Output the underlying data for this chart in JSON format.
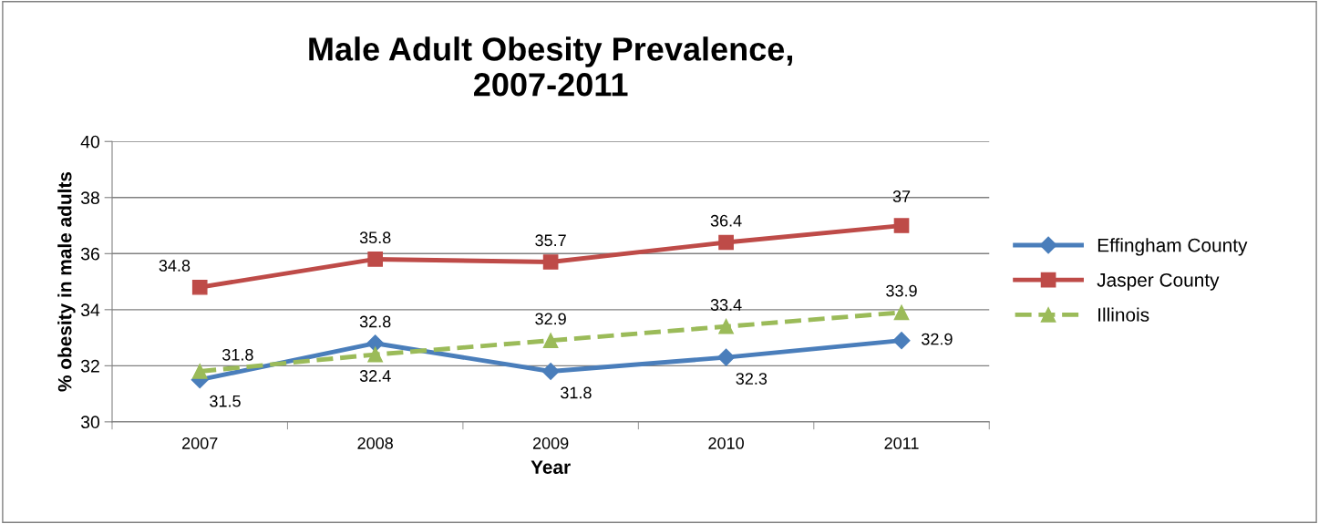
{
  "chart_data": {
    "type": "line",
    "title": "Male Adult Obesity Prevalence,\n2007-2011",
    "xlabel": "Year",
    "ylabel": "% obesity in male adults",
    "categories": [
      "2007",
      "2008",
      "2009",
      "2010",
      "2011"
    ],
    "series": [
      {
        "name": "Effingham County",
        "color": "#4a7ebb",
        "values": [
          31.5,
          32.8,
          31.8,
          32.3,
          32.9
        ],
        "marker": "diamond",
        "line_style": "solid"
      },
      {
        "name": "Jasper County",
        "color": "#be4b48",
        "values": [
          34.8,
          35.8,
          35.7,
          36.4,
          37
        ],
        "marker": "square",
        "line_style": "solid"
      },
      {
        "name": "Illinois",
        "color": "#9bbb59",
        "values": [
          31.8,
          32.4,
          32.9,
          33.4,
          33.9
        ],
        "marker": "triangle",
        "line_style": "dashed"
      }
    ],
    "ylim": [
      30,
      40
    ],
    "yticks": [
      30,
      32,
      34,
      36,
      38,
      40
    ],
    "grid": "y",
    "legend": "right",
    "data_labels": true
  }
}
